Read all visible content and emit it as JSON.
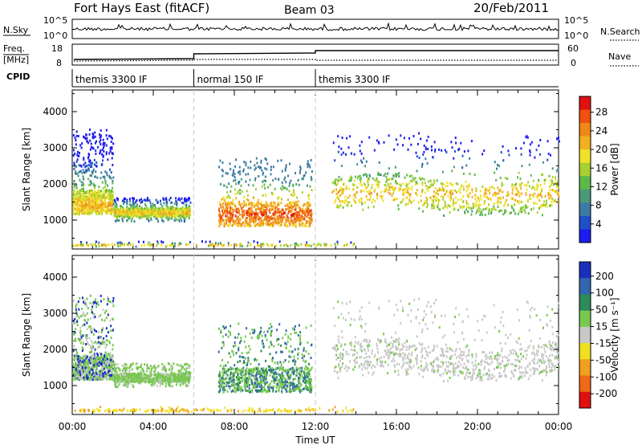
{
  "header": {
    "station": "Fort Hays East (fitACF)",
    "beam": "Beam 03",
    "date": "20/Feb/2011"
  },
  "noise_panel": {
    "left_label": "N.Sky",
    "right_label": "N.Search",
    "left_ticks": [
      "10^5",
      "10^0"
    ],
    "right_ticks": [
      "10^5",
      "10^0"
    ]
  },
  "freq_panel": {
    "left_label_1": "Freq.",
    "left_label_2": "[MHz]",
    "right_label": "Nave",
    "left_ticks": [
      "18",
      "8"
    ],
    "right_ticks": [
      "60",
      "0"
    ]
  },
  "cpid": {
    "label": "CPID",
    "segments": [
      {
        "name": "themis 3300 IF",
        "start": 0,
        "end": 6
      },
      {
        "name": "normal 150 IF",
        "start": 6,
        "end": 12
      },
      {
        "name": "themis 3300 IF",
        "start": 12,
        "end": 24
      }
    ]
  },
  "chart_data": [
    {
      "type": "heatmap",
      "title": "",
      "xlabel": "Time UT",
      "ylabel": "Slant Range [km]",
      "x_unit": "hours UT",
      "xlim": [
        0,
        24
      ],
      "ylim": [
        200,
        4600
      ],
      "y_ticks": [
        1000,
        2000,
        3000,
        4000
      ],
      "x_ticks": [
        "00:00",
        "04:00",
        "08:00",
        "12:00",
        "16:00",
        "20:00",
        "00:00"
      ],
      "dashed_time_markers": [
        6,
        12
      ],
      "colorbar": {
        "label": "Power [dB]",
        "ticks": [
          "4",
          "8",
          "12",
          "16",
          "20",
          "24",
          "28"
        ],
        "colors": [
          "#1c1cf0",
          "#2050c8",
          "#3c7ca4",
          "#4a9a78",
          "#5cb84a",
          "#a8d030",
          "#f0e028",
          "#f0b020",
          "#f08818",
          "#f05010",
          "#e01010"
        ]
      },
      "scatter_regions": [
        {
          "name": "",
          "t_start": 0.0,
          "t_end": 2.0,
          "r_low": 1150,
          "r_high": 3500,
          "peak_range": 1400
        },
        {
          "name": "",
          "t_start": 2.0,
          "t_end": 5.8,
          "r_low": 950,
          "r_high": 1600,
          "peak_range": 1200
        },
        {
          "name": "",
          "t_start": 7.2,
          "t_end": 11.8,
          "r_low": 800,
          "r_high": 2700,
          "peak_range": 1150
        },
        {
          "name": "",
          "t_start": 12.8,
          "t_end": 24.0,
          "r_low": 1100,
          "r_high": 3400,
          "peak_range": 1700
        },
        {
          "name": "",
          "t_start": 0.0,
          "t_end": 14.0,
          "r_low": 250,
          "r_high": 400,
          "peak_range": 300
        }
      ]
    },
    {
      "type": "heatmap",
      "title": "",
      "xlabel": "Time UT",
      "ylabel": "Slant Range [km]",
      "x_unit": "hours UT",
      "xlim": [
        0,
        24
      ],
      "ylim": [
        200,
        4600
      ],
      "y_ticks": [
        1000,
        2000,
        3000,
        4000
      ],
      "x_ticks": [
        "00:00",
        "04:00",
        "08:00",
        "12:00",
        "16:00",
        "20:00",
        "00:00"
      ],
      "dashed_time_markers": [
        6,
        12
      ],
      "colorbar": {
        "label": "Velocity [m s⁻¹]",
        "ticks": [
          "200",
          "100",
          "50",
          "15",
          "-15",
          "-50",
          "-100",
          "-200"
        ],
        "colors": [
          "#1a2fc0",
          "#3366b0",
          "#2e8a5a",
          "#78c850",
          "#c8c8c8",
          "#f0e020",
          "#f0a020",
          "#f06818",
          "#e01010"
        ]
      },
      "scatter_regions": [
        {
          "name": "",
          "t_start": 0.0,
          "t_end": 2.0,
          "r_low": 1150,
          "r_high": 3500,
          "peak_range": 1400
        },
        {
          "name": "",
          "t_start": 2.0,
          "t_end": 5.8,
          "r_low": 950,
          "r_high": 1600,
          "peak_range": 1200
        },
        {
          "name": "",
          "t_start": 7.2,
          "t_end": 11.8,
          "r_low": 800,
          "r_high": 2700,
          "peak_range": 1150
        },
        {
          "name": "",
          "t_start": 12.8,
          "t_end": 24.0,
          "r_low": 1100,
          "r_high": 3400,
          "peak_range": 1700
        },
        {
          "name": "",
          "t_start": 0.0,
          "t_end": 14.0,
          "r_low": 250,
          "r_high": 400,
          "peak_range": 300
        }
      ]
    }
  ]
}
